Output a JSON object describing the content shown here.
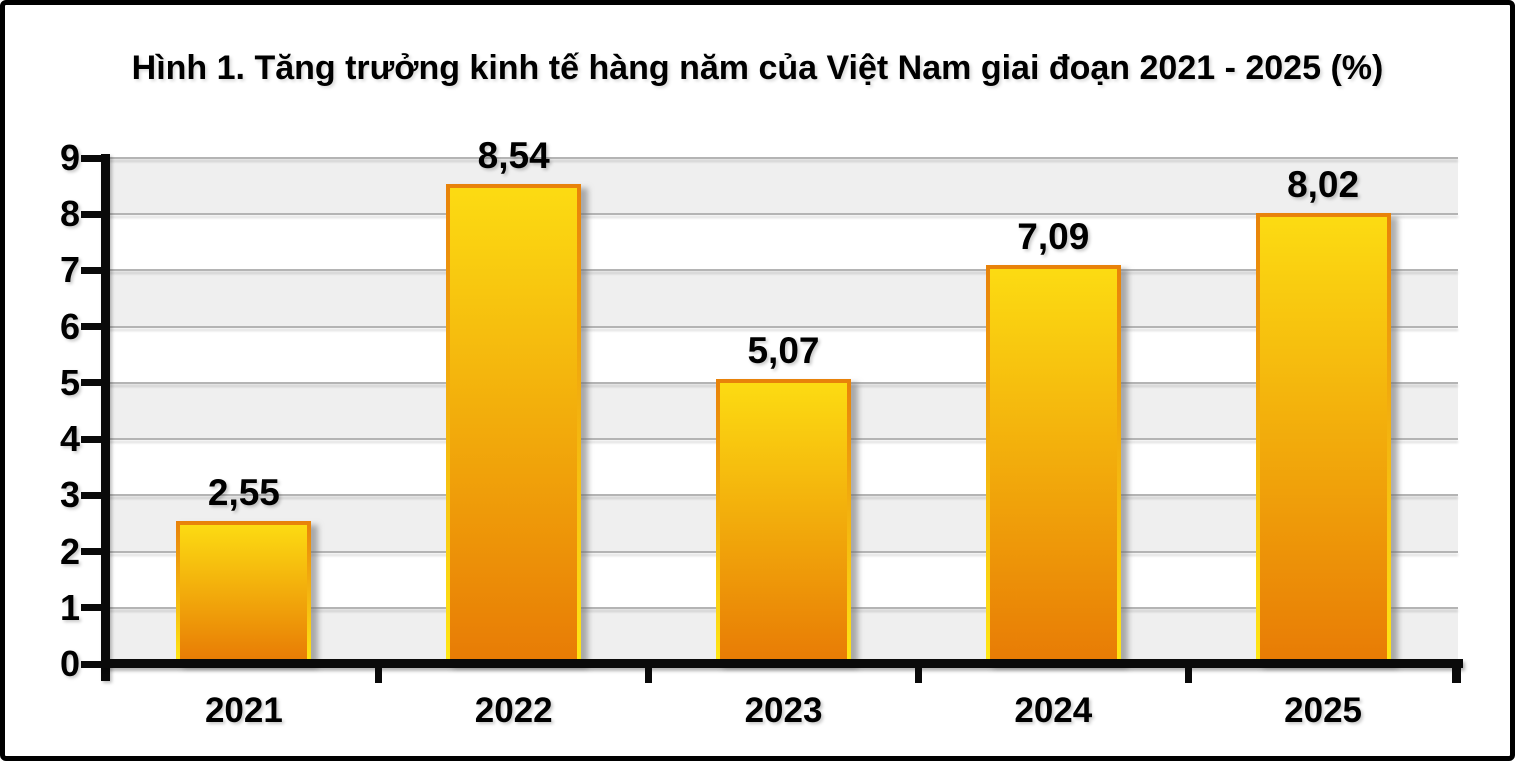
{
  "figure": {
    "background": "#FFFFFF",
    "frame_border_color": "#000000"
  },
  "chart_data": {
    "type": "bar",
    "title": "Hình 1. Tăng trưởng kinh tế hàng năm của Việt Nam giai đoạn 2021 - 2025 (%)",
    "categories": [
      "2021",
      "2022",
      "2023",
      "2024",
      "2025"
    ],
    "values": [
      2.55,
      8.54,
      5.07,
      7.09,
      8.02
    ],
    "value_labels": [
      "2,55",
      "8,54",
      "5,07",
      "7,09",
      "8,02"
    ],
    "xlabel": "",
    "ylabel": "",
    "ylim": [
      0,
      9
    ],
    "y_ticks": [
      0,
      1,
      2,
      3,
      4,
      5,
      6,
      7,
      8,
      9
    ],
    "y_tick_labels": [
      "0",
      "1",
      "2",
      "3",
      "4",
      "5",
      "6",
      "7",
      "8",
      "9"
    ],
    "grid": true,
    "legend": "none",
    "plot_style": "alternating horizontal bands, glossy gradient bars with drop shadow",
    "colors": {
      "bar_fill_top": "#FCDB12",
      "bar_fill_bottom": "#E87C05",
      "bar_border_top": "#E8820A",
      "bar_border_bottom": "#FFE715",
      "band_shaded": "#EFEFEF",
      "band_plain": "#FFFFFF",
      "gridline": "#B4B4B4",
      "axis": "#0A0A0A",
      "text": "#000000"
    }
  }
}
